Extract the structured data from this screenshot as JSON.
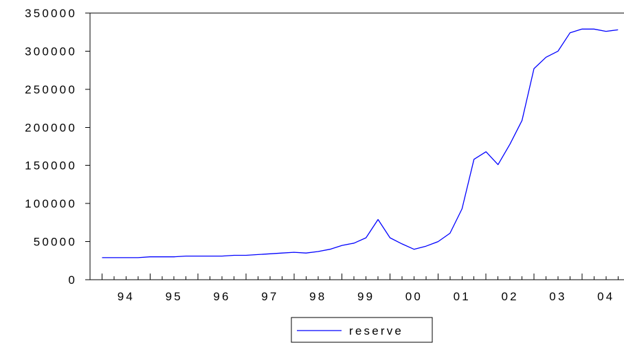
{
  "chart_data": {
    "type": "line",
    "title": "",
    "xlabel": "",
    "ylabel": "",
    "x": [
      1994.0,
      1994.25,
      1994.5,
      1994.75,
      1995.0,
      1995.25,
      1995.5,
      1995.75,
      1996.0,
      1996.25,
      1996.5,
      1996.75,
      1997.0,
      1997.25,
      1997.5,
      1997.75,
      1998.0,
      1998.25,
      1998.5,
      1998.75,
      1999.0,
      1999.25,
      1999.5,
      1999.75,
      2000.0,
      2000.25,
      2000.5,
      2000.75,
      2001.0,
      2001.25,
      2001.5,
      2001.75,
      2002.0,
      2002.25,
      2002.5,
      2002.75,
      2003.0,
      2003.25,
      2003.5,
      2003.75,
      2004.0,
      2004.25,
      2004.5,
      2004.75
    ],
    "series": [
      {
        "name": "reserve",
        "color": "#0000ff",
        "values": [
          29000,
          29000,
          29000,
          29000,
          30000,
          30000,
          30000,
          31000,
          31000,
          31000,
          31000,
          32000,
          32000,
          33000,
          34000,
          35000,
          36000,
          35000,
          37000,
          40000,
          45000,
          48000,
          55000,
          79000,
          55000,
          47000,
          40000,
          44000,
          50000,
          61000,
          93000,
          158000,
          168000,
          151000,
          178000,
          209000,
          277000,
          292000,
          300000,
          324000,
          329000,
          329000,
          326000,
          328000
        ]
      }
    ],
    "ylim": [
      0,
      350000
    ],
    "xlim": [
      1993.75,
      2004.875
    ],
    "y_ticks": [
      {
        "value": 0,
        "label": "0"
      },
      {
        "value": 50000,
        "label": "50000"
      },
      {
        "value": 100000,
        "label": "100000"
      },
      {
        "value": 150000,
        "label": "150000"
      },
      {
        "value": 200000,
        "label": "200000"
      },
      {
        "value": 250000,
        "label": "250000"
      },
      {
        "value": 300000,
        "label": "300000"
      },
      {
        "value": 350000,
        "label": "350000"
      }
    ],
    "x_major_ticks": [
      1994,
      1995,
      1996,
      1997,
      1998,
      1999,
      2000,
      2001,
      2002,
      2003,
      2004
    ],
    "x_tick_labels": [
      {
        "value": 1994.5,
        "label": "94"
      },
      {
        "value": 1995.5,
        "label": "95"
      },
      {
        "value": 1996.5,
        "label": "96"
      },
      {
        "value": 1997.5,
        "label": "97"
      },
      {
        "value": 1998.5,
        "label": "98"
      },
      {
        "value": 1999.5,
        "label": "99"
      },
      {
        "value": 2000.5,
        "label": "00"
      },
      {
        "value": 2001.5,
        "label": "01"
      },
      {
        "value": 2002.5,
        "label": "02"
      },
      {
        "value": 2003.5,
        "label": "03"
      },
      {
        "value": 2004.5,
        "label": "04"
      }
    ],
    "grid": false,
    "legend": {
      "position": "bottom-center",
      "entries": [
        "reserve"
      ]
    }
  }
}
